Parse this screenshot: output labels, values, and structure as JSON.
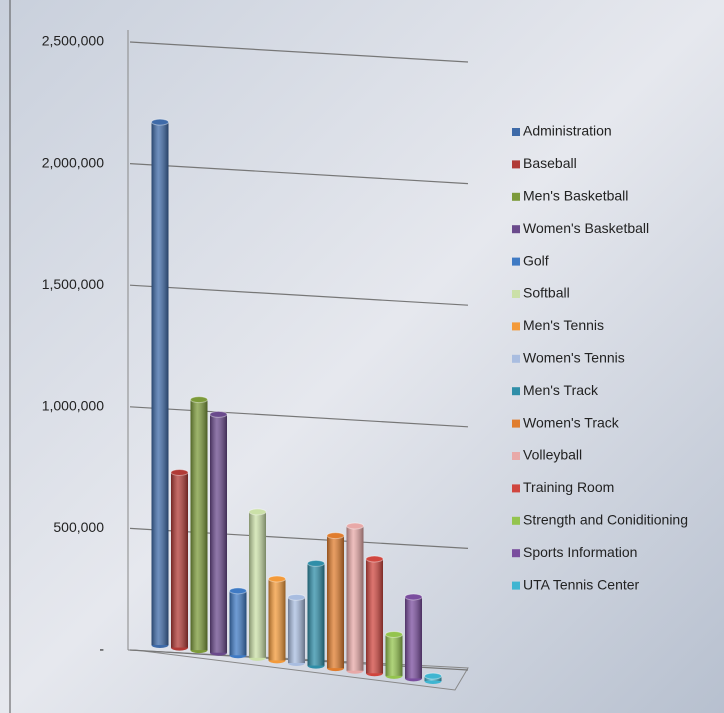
{
  "chart_data": {
    "type": "bar3d",
    "series": [
      {
        "name": "Administration",
        "color": "#3e6aa8",
        "values": [
          2150000
        ]
      },
      {
        "name": "Baseball",
        "color": "#b13a36",
        "values": [
          720000
        ]
      },
      {
        "name": "Men's Basketball",
        "color": "#7c9a3a",
        "values": [
          1030000
        ]
      },
      {
        "name": "Women's Basketball",
        "color": "#6a4a8c",
        "values": [
          980000
        ]
      },
      {
        "name": "Golf",
        "color": "#3f7ac4",
        "values": [
          265000
        ]
      },
      {
        "name": "Softball",
        "color": "#cbe0a8",
        "values": [
          600000
        ]
      },
      {
        "name": "Men's Tennis",
        "color": "#f39a3a",
        "values": [
          335000
        ]
      },
      {
        "name": "Women's Tennis",
        "color": "#a9bde0",
        "values": [
          270000
        ]
      },
      {
        "name": "Men's Track",
        "color": "#2f8ea8",
        "values": [
          420000
        ]
      },
      {
        "name": "Women's Track",
        "color": "#e07d2e",
        "values": [
          545000
        ]
      },
      {
        "name": "Volleyball",
        "color": "#e8a9a8",
        "values": [
          595000
        ]
      },
      {
        "name": "Training Room",
        "color": "#d0463f",
        "values": [
          470000
        ]
      },
      {
        "name": "Strength and Coniditioning",
        "color": "#94c44e",
        "values": [
          170000
        ]
      },
      {
        "name": "Sports Information",
        "color": "#7a4d9e",
        "values": [
          335000
        ]
      },
      {
        "name": "UTA Tennis Center",
        "color": "#3fb5d1",
        "values": [
          20000
        ]
      }
    ],
    "ylim": [
      0,
      2500000
    ],
    "yticks": [
      {
        "value": 0,
        "label": "-"
      },
      {
        "value": 500000,
        "label": "500,000"
      },
      {
        "value": 1000000,
        "label": "1,000,000"
      },
      {
        "value": 1500000,
        "label": "1,500,000"
      },
      {
        "value": 2000000,
        "label": "2,000,000"
      },
      {
        "value": 2500000,
        "label": "2,500,000"
      }
    ],
    "grid": true,
    "legend": "right"
  }
}
